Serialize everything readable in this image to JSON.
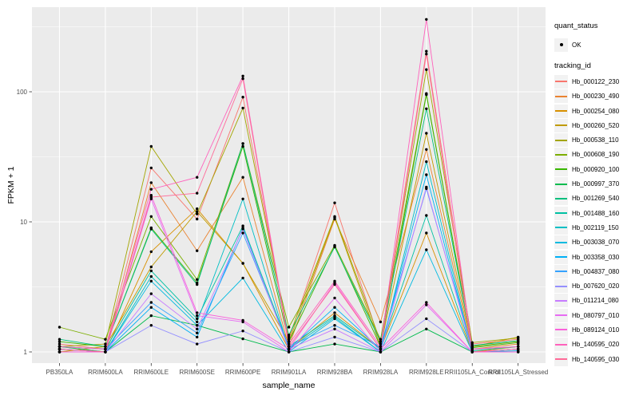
{
  "chart_data": {
    "type": "line",
    "title": "",
    "xlabel": "sample_name",
    "ylabel": "FPKM + 1",
    "y_scale": "log10",
    "y_ticks": [
      "1",
      "10",
      "100"
    ],
    "y_minor_breaks": [
      3.162,
      31.62,
      316.2
    ],
    "ylim": [
      0.82,
      440
    ],
    "grid": true,
    "panel_bg": "#EBEBEB",
    "grid_color": "#FFFFFF",
    "tick_color": "#333333",
    "tick_label_color": "#4D4D4D",
    "point_color": "#000000",
    "legend_position": "right",
    "legend": {
      "quant_status_title": "quant_status",
      "ok_label": "OK",
      "tracking_id_title": "tracking_id"
    },
    "categories": [
      "PB350LA",
      "RRIM600LA",
      "RRIM600LE",
      "RRIM600SE",
      "RRIM600PE",
      "RRIM901LA",
      "RRIM928BA",
      "RRIM928LA",
      "RRIM928LE",
      "RRII105LA_Control",
      "RRII105LA_Stressed"
    ],
    "series": [
      {
        "name": "Hb_000122_230",
        "color": "#F8766D",
        "values": [
          1.15,
          1.05,
          26,
          10.5,
          91,
          1.25,
          14,
          1.15,
          205,
          1.15,
          1.25
        ]
      },
      {
        "name": "Hb_000230_490",
        "color": "#EA8331",
        "values": [
          1.1,
          1.0,
          20,
          6.0,
          22,
          1.1,
          10.5,
          1.7,
          36,
          1.05,
          1.15
        ]
      },
      {
        "name": "Hb_000254_080",
        "color": "#D89000",
        "values": [
          1.05,
          1.0,
          5.9,
          12.6,
          4.8,
          1.05,
          2.0,
          1.05,
          8.2,
          1.0,
          1.1
        ]
      },
      {
        "name": "Hb_000260_520",
        "color": "#C09B00",
        "values": [
          1.0,
          1.1,
          4.5,
          12.0,
          4.8,
          1.2,
          10.8,
          1.1,
          48,
          1.1,
          1.3
        ]
      },
      {
        "name": "Hb_000538_110",
        "color": "#A3A500",
        "values": [
          1.1,
          1.15,
          38,
          11.5,
          75,
          1.3,
          11,
          1.2,
          148,
          1.18,
          1.28
        ]
      },
      {
        "name": "Hb_000608_190",
        "color": "#7CAE00",
        "values": [
          1.55,
          1.25,
          11,
          3.6,
          40,
          1.55,
          6.6,
          1.25,
          97,
          1.1,
          1.2
        ]
      },
      {
        "name": "Hb_000920_100",
        "color": "#39B600",
        "values": [
          1.2,
          1.1,
          9.0,
          3.4,
          38,
          1.2,
          6.5,
          1.1,
          95,
          1.08,
          1.18
        ]
      },
      {
        "name": "Hb_000997_370",
        "color": "#00BB4E",
        "values": [
          1.1,
          1.0,
          1.9,
          1.6,
          1.26,
          1.0,
          1.15,
          1.0,
          1.5,
          1.0,
          1.05
        ]
      },
      {
        "name": "Hb_001269_540",
        "color": "#00BF7D",
        "values": [
          1.25,
          1.1,
          8.8,
          3.3,
          40,
          1.35,
          6.4,
          1.2,
          74,
          1.12,
          1.22
        ]
      },
      {
        "name": "Hb_001488_160",
        "color": "#00C1A3",
        "values": [
          1.1,
          1.05,
          4.2,
          1.8,
          9.3,
          1.1,
          1.9,
          1.05,
          11.2,
          1.02,
          1.1
        ]
      },
      {
        "name": "Hb_002119_150",
        "color": "#00BFC4",
        "values": [
          1.05,
          1.0,
          3.8,
          1.7,
          15,
          1.05,
          1.85,
          1.0,
          29,
          1.0,
          1.05
        ]
      },
      {
        "name": "Hb_003038_070",
        "color": "#00BAE0",
        "values": [
          1.0,
          1.0,
          3.5,
          1.6,
          3.7,
          1.0,
          1.8,
          1.0,
          6.1,
          1.0,
          1.02
        ]
      },
      {
        "name": "Hb_003358_030",
        "color": "#00B0F6",
        "values": [
          1.05,
          1.0,
          2.2,
          1.3,
          9.0,
          1.05,
          2.2,
          1.05,
          23,
          1.0,
          1.05
        ]
      },
      {
        "name": "Hb_004837_080",
        "color": "#35A2FF",
        "values": [
          1.1,
          1.05,
          2.4,
          1.4,
          8.2,
          1.1,
          1.6,
          1.1,
          18,
          1.05,
          1.1
        ]
      },
      {
        "name": "Hb_007620_020",
        "color": "#9590FF",
        "values": [
          1.0,
          1.0,
          1.6,
          1.15,
          1.45,
          1.0,
          1.3,
          1.0,
          1.8,
          1.0,
          1.0
        ]
      },
      {
        "name": "Hb_011214_080",
        "color": "#C77CFF",
        "values": [
          1.05,
          1.0,
          2.8,
          1.5,
          8.8,
          1.05,
          1.5,
          1.0,
          18.5,
          1.0,
          1.05
        ]
      },
      {
        "name": "Hb_080797_010",
        "color": "#E76BF3",
        "values": [
          1.0,
          1.0,
          15,
          1.9,
          1.7,
          1.0,
          2.6,
          1.0,
          2.3,
          1.0,
          1.0
        ]
      },
      {
        "name": "Hb_089124_010",
        "color": "#FA62DB",
        "values": [
          1.0,
          1.0,
          16,
          2.0,
          1.75,
          1.05,
          3.4,
          1.05,
          2.4,
          1.0,
          1.0
        ]
      },
      {
        "name": "Hb_140595_020",
        "color": "#FF62BC",
        "values": [
          1.1,
          1.05,
          17.8,
          22,
          132,
          1.15,
          3.5,
          1.1,
          360,
          1.05,
          1.1
        ]
      },
      {
        "name": "Hb_140595_030",
        "color": "#FF6A98",
        "values": [
          1.05,
          1.0,
          15.5,
          16.6,
          126,
          1.1,
          3.3,
          1.05,
          195,
          1.0,
          1.05
        ]
      }
    ]
  }
}
